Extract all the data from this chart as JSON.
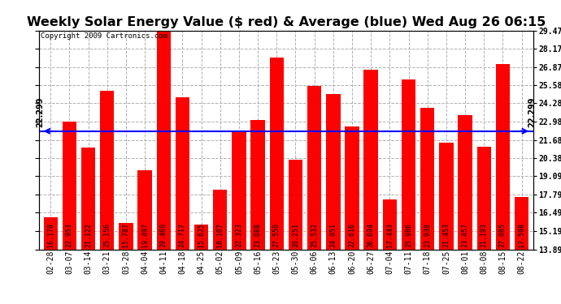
{
  "title": "Weekly Solar Energy Value ($ red) & Average (blue) Wed Aug 26 06:15",
  "copyright": "Copyright 2009 Cartronics.com",
  "categories": [
    "02-28",
    "03-07",
    "03-14",
    "03-21",
    "03-28",
    "04-04",
    "04-11",
    "04-18",
    "04-25",
    "05-02",
    "05-09",
    "05-16",
    "05-23",
    "05-30",
    "06-06",
    "06-13",
    "06-20",
    "06-27",
    "07-04",
    "07-11",
    "07-18",
    "07-25",
    "08-01",
    "08-08",
    "08-15",
    "08-22"
  ],
  "values": [
    16.178,
    22.953,
    21.122,
    25.156,
    15.787,
    19.497,
    29.469,
    24.717,
    15.625,
    18.107,
    22.323,
    23.088,
    27.55,
    20.251,
    25.532,
    24.951,
    22.616,
    26.694,
    17.443,
    25.986,
    23.938,
    21.453,
    23.457,
    21.193,
    27.085,
    17.598
  ],
  "average": 22.299,
  "bar_color": "#ff0000",
  "avg_line_color": "#0000ff",
  "background_color": "#ffffff",
  "plot_bg_color": "#ffffff",
  "grid_color": "#b0b0b0",
  "avg_label": "22.299",
  "ylim_min": 13.89,
  "ylim_max": 29.47,
  "yticks": [
    13.89,
    15.19,
    16.49,
    17.79,
    19.09,
    20.38,
    21.68,
    22.98,
    24.28,
    25.58,
    26.87,
    28.17,
    29.47
  ],
  "title_fontsize": 11.5,
  "tick_fontsize": 7,
  "bar_label_fontsize": 6,
  "copyright_fontsize": 6.5,
  "avg_label_fontsize": 7
}
